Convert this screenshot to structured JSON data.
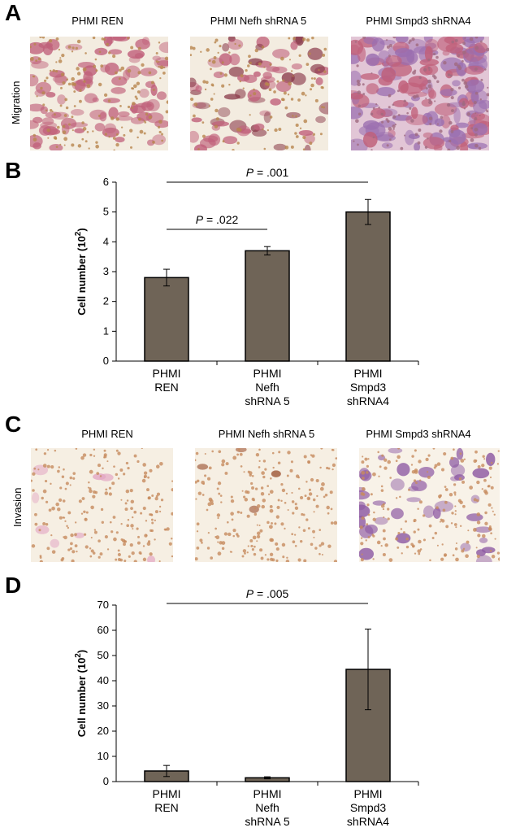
{
  "panels": {
    "a": {
      "letter": "A",
      "side_label": "Migration",
      "images": [
        {
          "title": "PHMI REN"
        },
        {
          "title": "PHMI Nefh shRNA 5"
        },
        {
          "title": "PHMI Smpd3 shRNA4"
        }
      ]
    },
    "b": {
      "letter": "B"
    },
    "c": {
      "letter": "C",
      "side_label": "Invasion",
      "images": [
        {
          "title": "PHMI REN"
        },
        {
          "title": "PHMI Nefh shRNA 5"
        },
        {
          "title": "PHMI Smpd3 shRNA4"
        }
      ]
    },
    "d": {
      "letter": "D"
    }
  },
  "colors": {
    "bar": "#6f6457",
    "migration_bg": "#f3ece0",
    "migration_cell": "#c0607a",
    "migration_cell_dark": "#8a3a4a",
    "migration_purple": "#9b6fb0",
    "invasion_bg": "#f6efe3",
    "invasion_dot": "#c78b5e",
    "invasion_purple": "#8e5aa3"
  },
  "chart_data": [
    {
      "type": "bar",
      "categories": [
        [
          "PHMI",
          "REN"
        ],
        [
          "PHMI",
          "Nefh",
          "shRNA 5"
        ],
        [
          "PHMI",
          "Smpd3",
          "shRNA4"
        ]
      ],
      "values": [
        2.8,
        3.7,
        5.0
      ],
      "errors": [
        0.28,
        0.14,
        0.42
      ],
      "ylabel": "Cell number (10",
      "ylabel_sup": "2",
      "ylabel_end": ")",
      "ylim": [
        0,
        6
      ],
      "yticks": [
        0,
        1,
        2,
        3,
        4,
        5,
        6
      ],
      "annotations": [
        {
          "from": 0,
          "to": 1,
          "label_p": "P",
          "label_val": " = .022"
        },
        {
          "from": 0,
          "to": 2,
          "label_p": "P",
          "label_val": " = .001"
        }
      ],
      "grid": false
    },
    {
      "type": "bar",
      "categories": [
        [
          "PHMI",
          "REN"
        ],
        [
          "PHMI",
          "Nefh",
          "shRNA 5"
        ],
        [
          "PHMI",
          "Smpd3",
          "shRNA4"
        ]
      ],
      "values": [
        4.2,
        1.5,
        44.5
      ],
      "errors": [
        2.2,
        0.4,
        16.0
      ],
      "ylabel": "Cell number (10",
      "ylabel_sup": "2",
      "ylabel_end": ")",
      "ylim": [
        0,
        70
      ],
      "yticks": [
        0,
        10,
        20,
        30,
        40,
        50,
        60,
        70
      ],
      "annotations": [
        {
          "from": 0,
          "to": 2,
          "label_p": "P",
          "label_val": " = .005"
        }
      ],
      "grid": false
    }
  ]
}
